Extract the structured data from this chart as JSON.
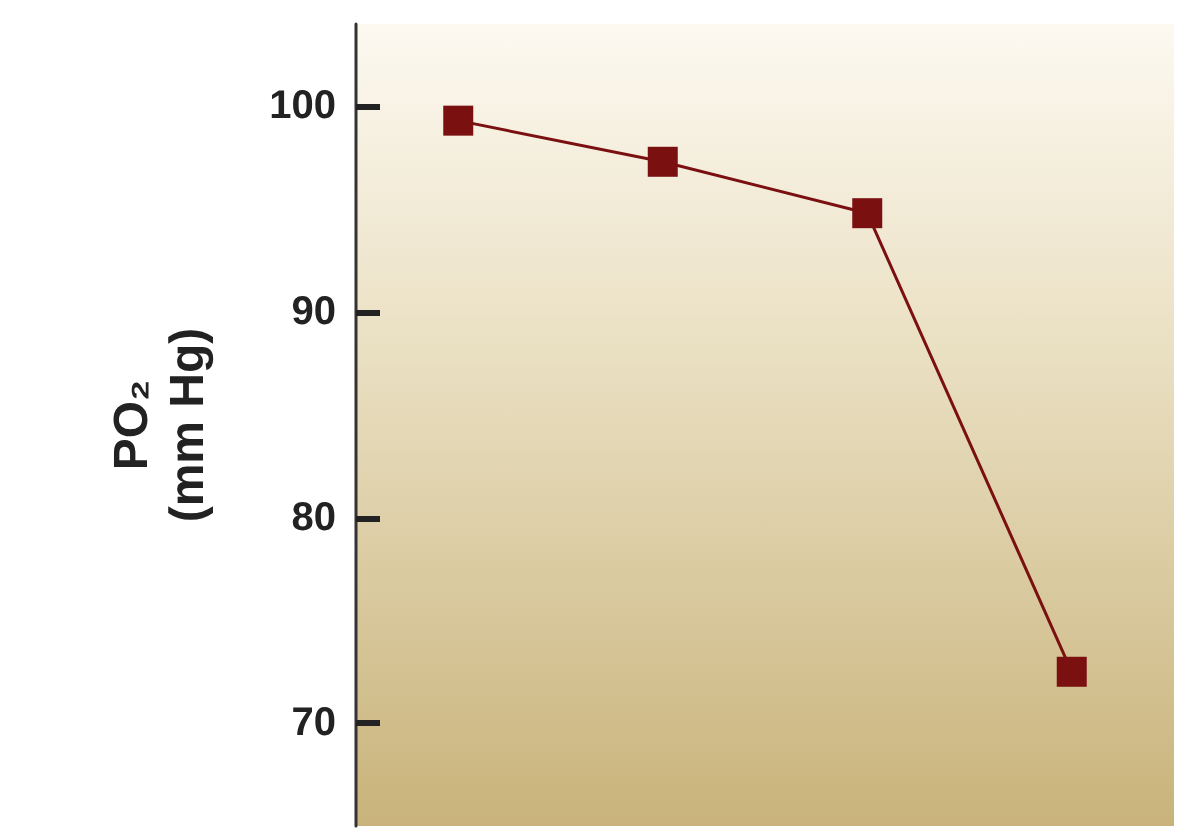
{
  "chart_data": {
    "type": "line",
    "ylabel": "PO₂\n(mm Hg)",
    "categories": [
      null,
      null,
      null,
      null
    ],
    "series": [
      {
        "color": "#7a1010",
        "values": [
          99.3,
          97.3,
          94.8,
          72.5
        ]
      }
    ],
    "ylim": [
      65,
      104
    ],
    "yticks": [
      70,
      80,
      90,
      100
    ],
    "grid": false,
    "marker": "square",
    "line_style": "solid",
    "tick_labels": "y"
  }
}
